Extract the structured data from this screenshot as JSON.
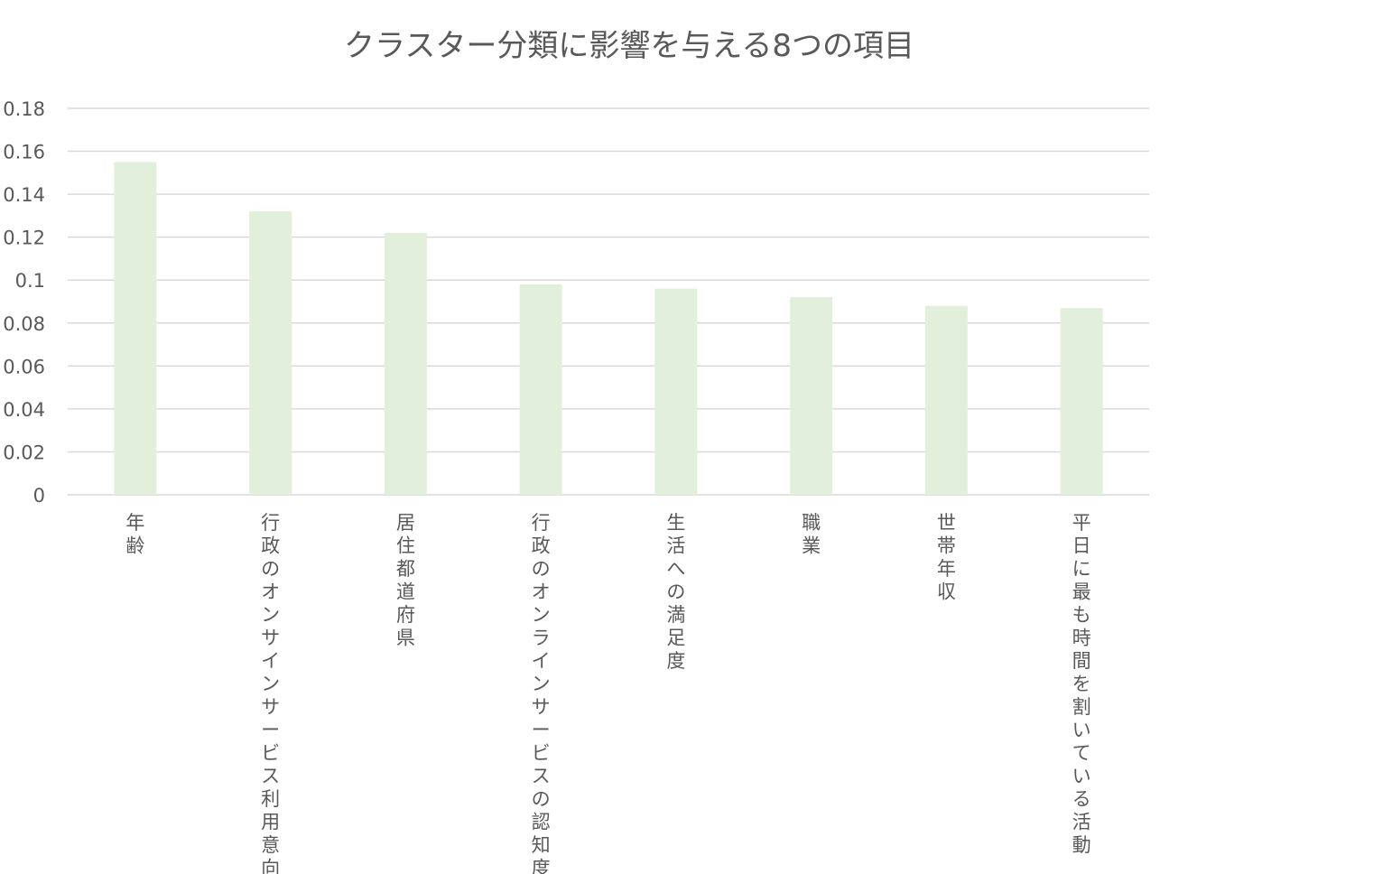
{
  "chart_data": {
    "type": "bar",
    "title": "クラスター分類に影響を与える8つの項目",
    "xlabel": "",
    "ylabel": "",
    "categories": [
      "年齢",
      "行政のオンサインサービス利用意向",
      "居住都道府県",
      "行政のオンラインサービスの認知度",
      "生活への満足度",
      "職業",
      "世帯年収",
      "平日に最も時間を割いている活動"
    ],
    "values": [
      0.155,
      0.132,
      0.122,
      0.098,
      0.096,
      0.092,
      0.088,
      0.087
    ],
    "ylim": [
      0,
      0.18
    ],
    "yticks": [
      0,
      0.02,
      0.04,
      0.06,
      0.08,
      0.1,
      0.12,
      0.14,
      0.16,
      0.18
    ],
    "ytick_labels": [
      "0",
      "0.02",
      "0.04",
      "0.06",
      "0.08",
      "0.1",
      "0.12",
      "0.14",
      "0.16",
      "0.18"
    ],
    "grid": true,
    "legend": "none",
    "bar_color": "#e2efda"
  }
}
